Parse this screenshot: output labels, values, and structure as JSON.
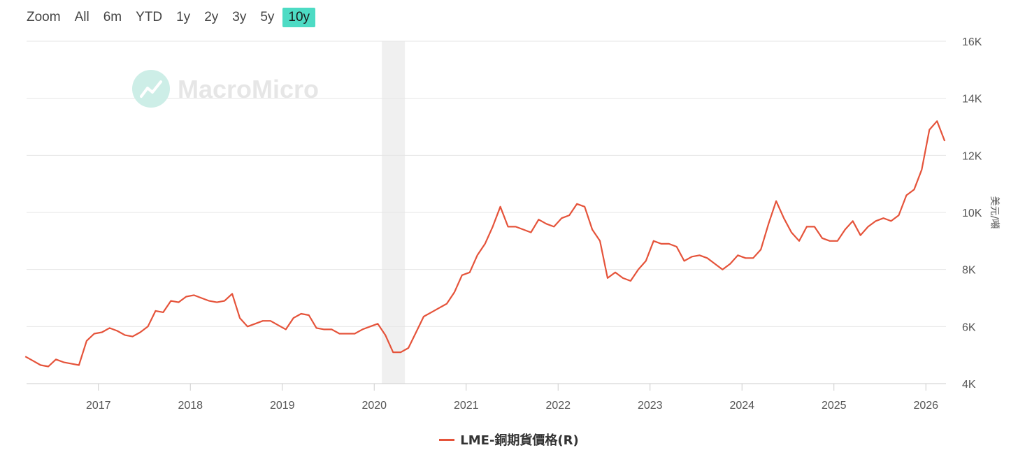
{
  "zoom": {
    "label": "Zoom",
    "buttons": [
      {
        "label": "All",
        "active": false
      },
      {
        "label": "6m",
        "active": false
      },
      {
        "label": "YTD",
        "active": false
      },
      {
        "label": "1y",
        "active": false
      },
      {
        "label": "2y",
        "active": false
      },
      {
        "label": "3y",
        "active": false
      },
      {
        "label": "5y",
        "active": false
      },
      {
        "label": "10y",
        "active": true
      }
    ]
  },
  "watermark": "MacroMicro",
  "colors": {
    "series": "#e5533a",
    "accent": "#4ddbc4",
    "grid": "#e6e6e6",
    "recession_band": "#f0f0f0",
    "watermark": "#cdeee7"
  },
  "chart_data": {
    "type": "line",
    "title": "",
    "ylabel": "美元/噸",
    "ylim": [
      4000,
      16000
    ],
    "y_ticks": [
      4000,
      6000,
      8000,
      10000,
      12000,
      14000,
      16000
    ],
    "y_tick_labels": [
      "4K",
      "6K",
      "8K",
      "10K",
      "12K",
      "14K",
      "16K"
    ],
    "x_ticks": [
      2017,
      2018,
      2019,
      2020,
      2021,
      2022,
      2023,
      2024,
      2025,
      2026
    ],
    "x_range": [
      "2016-03-20",
      "2026-03-20"
    ],
    "shaded_periods": [
      [
        "2020-02-01",
        "2020-05-01"
      ]
    ],
    "series": [
      {
        "name": "LME-銅期貨價格(R)",
        "axis": "right",
        "x": [
          "2016-03",
          "2016-04",
          "2016-05",
          "2016-06",
          "2016-07",
          "2016-08",
          "2016-09",
          "2016-10",
          "2016-11",
          "2016-12",
          "2017-01",
          "2017-02",
          "2017-03",
          "2017-04",
          "2017-05",
          "2017-06",
          "2017-07",
          "2017-08",
          "2017-09",
          "2017-10",
          "2017-11",
          "2017-12",
          "2018-01",
          "2018-02",
          "2018-03",
          "2018-04",
          "2018-05",
          "2018-06",
          "2018-07",
          "2018-08",
          "2018-09",
          "2018-10",
          "2018-11",
          "2018-12",
          "2019-01",
          "2019-02",
          "2019-03",
          "2019-04",
          "2019-05",
          "2019-06",
          "2019-07",
          "2019-08",
          "2019-09",
          "2019-10",
          "2019-11",
          "2019-12",
          "2020-01",
          "2020-02",
          "2020-03",
          "2020-04",
          "2020-05",
          "2020-06",
          "2020-07",
          "2020-08",
          "2020-09",
          "2020-10",
          "2020-11",
          "2020-12",
          "2021-01",
          "2021-02",
          "2021-03",
          "2021-04",
          "2021-05",
          "2021-06",
          "2021-07",
          "2021-08",
          "2021-09",
          "2021-10",
          "2021-11",
          "2021-12",
          "2022-01",
          "2022-02",
          "2022-03",
          "2022-04",
          "2022-05",
          "2022-06",
          "2022-07",
          "2022-08",
          "2022-09",
          "2022-10",
          "2022-11",
          "2022-12",
          "2023-01",
          "2023-02",
          "2023-03",
          "2023-04",
          "2023-05",
          "2023-06",
          "2023-07",
          "2023-08",
          "2023-09",
          "2023-10",
          "2023-11",
          "2023-12",
          "2024-01",
          "2024-02",
          "2024-03",
          "2024-04",
          "2024-05",
          "2024-06",
          "2024-07",
          "2024-08",
          "2024-09",
          "2024-10",
          "2024-11",
          "2024-12",
          "2025-01",
          "2025-02",
          "2025-03",
          "2025-04",
          "2025-05",
          "2025-06",
          "2025-07",
          "2025-08",
          "2025-09",
          "2025-10",
          "2025-11",
          "2025-12",
          "2026-01",
          "2026-02",
          "2026-03"
        ],
        "values": [
          4950,
          4800,
          4650,
          4600,
          4850,
          4750,
          4700,
          4650,
          5500,
          5750,
          5800,
          5950,
          5850,
          5700,
          5650,
          5800,
          6000,
          6550,
          6500,
          6900,
          6850,
          7050,
          7100,
          7000,
          6900,
          6850,
          6900,
          7150,
          6300,
          6000,
          6100,
          6200,
          6200,
          6050,
          5900,
          6300,
          6450,
          6400,
          5950,
          5900,
          5900,
          5750,
          5750,
          5750,
          5900,
          6000,
          6100,
          5700,
          5100,
          5100,
          5250,
          5800,
          6350,
          6500,
          6650,
          6800,
          7200,
          7800,
          7900,
          8500,
          8900,
          9500,
          10200,
          9500,
          9500,
          9400,
          9300,
          9750,
          9600,
          9500,
          9800,
          9900,
          10300,
          10200,
          9400,
          9000,
          7700,
          7900,
          7700,
          7600,
          8000,
          8300,
          9000,
          8900,
          8900,
          8800,
          8300,
          8450,
          8500,
          8400,
          8200,
          8000,
          8200,
          8500,
          8400,
          8400,
          8700,
          9600,
          10400,
          9800,
          9300,
          9000,
          9500,
          9500,
          9100,
          9000,
          9000,
          9400,
          9700,
          9200,
          9500,
          9700,
          9800,
          9700,
          9900,
          10600,
          10800,
          11500,
          12900,
          13200,
          12500
        ]
      }
    ]
  }
}
